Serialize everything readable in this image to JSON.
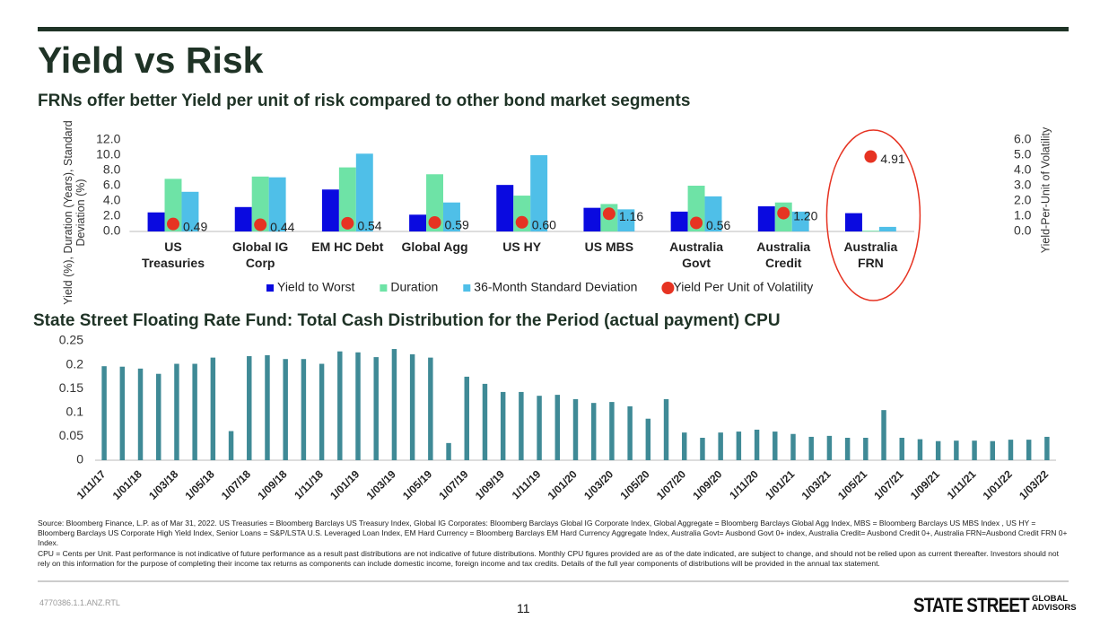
{
  "header": {
    "title": "Yield vs Risk",
    "subtitle": "FRNs offer better Yield per unit of risk compared to other bond market segments"
  },
  "chart_data": [
    {
      "type": "bar",
      "ylabel": "Yield (%), Duration (Years), Standard Deviation (%)",
      "y2label": "Yield-Per-Unit of Volatility",
      "categories": [
        "US Treasuries",
        "Global IG Corp",
        "EM HC Debt",
        "Global Agg",
        "US HY",
        "US MBS",
        "Australia Govt",
        "Australia Credit",
        "Australia FRN"
      ],
      "series": [
        {
          "name": "Yield to Worst",
          "color": "#0a0ae0",
          "values": [
            2.5,
            3.2,
            5.5,
            2.2,
            6.1,
            3.1,
            2.6,
            3.3,
            2.4
          ]
        },
        {
          "name": "Duration",
          "color": "#6ee3a6",
          "values": [
            6.9,
            7.2,
            8.4,
            7.5,
            4.7,
            3.6,
            6.0,
            3.8,
            0.1
          ]
        },
        {
          "name": "36-Month Standard Deviation",
          "color": "#4fbfe8",
          "values": [
            5.2,
            7.1,
            10.2,
            3.8,
            10.0,
            2.9,
            4.6,
            2.6,
            0.6
          ]
        },
        {
          "name": "Yield Per Unit of Volatility",
          "color": "#e63322",
          "type": "scatter",
          "axis": "y2",
          "values": [
            0.49,
            0.44,
            0.54,
            0.59,
            0.6,
            1.16,
            0.56,
            1.2,
            4.91
          ],
          "value_labels": [
            "0.49",
            "0.44",
            "0.54",
            "0.59",
            "0.60",
            "1.16",
            "0.56",
            "1.20",
            "4.91"
          ]
        }
      ],
      "ylim": [
        0,
        12
      ],
      "yticks": [
        {
          "value": 0,
          "label": "0.0"
        },
        {
          "value": 2,
          "label": "2.0"
        },
        {
          "value": 4,
          "label": "4.0"
        },
        {
          "value": 6,
          "label": "6.0"
        },
        {
          "value": 8,
          "label": "8.0"
        },
        {
          "value": 10,
          "label": "10.0"
        },
        {
          "value": 12,
          "label": "12.0"
        }
      ],
      "y2lim": [
        0,
        6
      ],
      "y2ticks": [
        {
          "value": 0,
          "label": "0.0"
        },
        {
          "value": 1,
          "label": "1.0"
        },
        {
          "value": 2,
          "label": "2.0"
        },
        {
          "value": 3,
          "label": "3.0"
        },
        {
          "value": 4,
          "label": "4.0"
        },
        {
          "value": 5,
          "label": "5.0"
        },
        {
          "value": 6,
          "label": "6.0"
        }
      ],
      "grid": false,
      "legend": "bottom"
    },
    {
      "type": "bar",
      "title": "State Street Floating Rate Fund: Total Cash Distribution for the Period (actual payment) CPU",
      "color": "#3f8a96",
      "categories": [
        "1/11/17",
        null,
        "1/01/18",
        null,
        "1/03/18",
        null,
        "1/05/18",
        null,
        "1/07/18",
        null,
        "1/09/18",
        null,
        "1/11/18",
        null,
        "1/01/19",
        null,
        "1/03/19",
        null,
        "1/05/19",
        null,
        "1/07/19",
        null,
        "1/09/19",
        null,
        "1/11/19",
        null,
        "1/01/20",
        null,
        "1/03/20",
        null,
        "1/05/20",
        null,
        "1/07/20",
        null,
        "1/09/20",
        null,
        "1/11/20",
        null,
        "1/01/21",
        null,
        "1/03/21",
        null,
        "1/05/21",
        null,
        "1/07/21",
        null,
        "1/09/21",
        null,
        "1/11/21",
        null,
        "1/01/22",
        null,
        "1/03/22"
      ],
      "values": [
        0.197,
        0.196,
        0.192,
        0.181,
        0.202,
        0.202,
        0.215,
        0.061,
        0.218,
        0.22,
        0.212,
        0.212,
        0.202,
        0.228,
        0.226,
        0.216,
        0.233,
        0.222,
        0.215,
        0.036,
        0.175,
        0.16,
        0.143,
        0.143,
        0.135,
        0.137,
        0.128,
        0.12,
        0.122,
        0.113,
        0.087,
        0.128,
        0.058,
        0.047,
        0.058,
        0.06,
        0.064,
        0.06,
        0.055,
        0.049,
        0.051,
        0.047,
        0.047,
        0.105,
        0.047,
        0.044,
        0.04,
        0.041,
        0.041,
        0.04,
        0.043,
        0.043,
        0.049
      ],
      "ylim": [
        0,
        0.25
      ],
      "yticks": [
        0,
        0.05,
        0.1,
        0.15,
        0.2,
        0.25
      ],
      "grid": false
    }
  ],
  "footer": {
    "source": "Source: Bloomberg Finance, L.P. as of Mar 31, 2022. US Treasuries = Bloomberg Barclays US Treasury Index, Global IG Corporates: Bloomberg Barclays Global IG Corporate Index, Global Aggregate = Bloomberg Barclays Global Agg Index, MBS = Bloomberg Barclays US MBS Index , US HY = Bloomberg Barclays US Corporate High Yield Index, Senior Loans = S&P/LSTA U.S. Leveraged Loan Index, EM Hard Currency = Bloomberg Barclays EM Hard Currency Aggregate Index, Australia Govt= Ausbond Govt 0+ index, Australia Credit= Ausbond Credit 0+, Australia FRN=Ausbond Credit FRN 0+ Index.",
    "disclaimer": "CPU = Cents per Unit. Past performance is not indicative of future performance as a result past distributions are not indicative of future distributions. Monthly CPU figures provided are as of the date indicated, are subject to change, and should not be relied upon as current thereafter. Investors should not rely on this information for the purpose of completing their income tax returns as components can include domestic income, foreign income and tax credits. Details of the full year components of distributions will be provided in the annual tax statement.",
    "code": "4770386.1.1.ANZ.RTL",
    "page": "11",
    "logo": "STATE STREET",
    "logo_sub": "GLOBAL ADVISORS"
  }
}
